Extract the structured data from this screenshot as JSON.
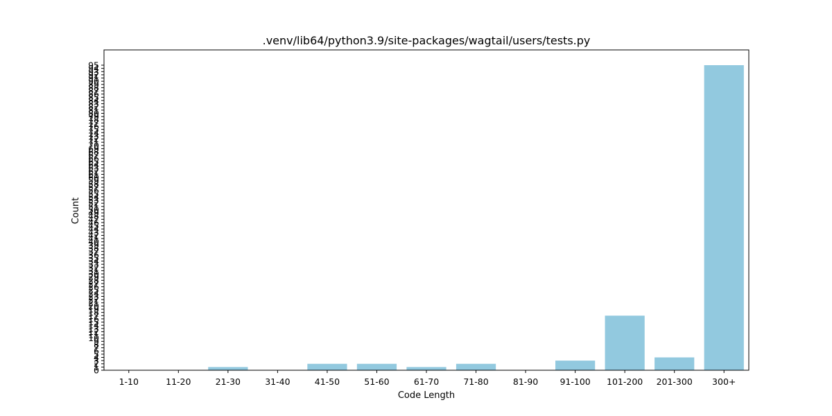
{
  "chart_data": {
    "type": "bar",
    "title": ".venv/lib64/python3.9/site-packages/wagtail/users/tests.py",
    "xlabel": "Code Length",
    "ylabel": "Count",
    "categories": [
      "1-10",
      "11-20",
      "21-30",
      "31-40",
      "41-50",
      "51-60",
      "61-70",
      "71-80",
      "81-90",
      "91-100",
      "101-200",
      "201-300",
      "300+"
    ],
    "values": [
      0,
      0,
      1,
      0,
      2,
      2,
      1,
      2,
      0,
      3,
      17,
      4,
      95
    ],
    "ylim": [
      0,
      99.75
    ],
    "yticks": [
      0,
      1,
      2,
      3,
      4,
      5,
      6,
      7,
      8,
      9,
      10,
      11,
      12,
      13,
      14,
      15,
      16,
      17,
      18,
      19,
      20,
      21,
      22,
      23,
      24,
      25,
      26,
      27,
      28,
      29,
      30,
      31,
      32,
      33,
      34,
      35,
      36,
      37,
      38,
      39,
      40,
      41,
      42,
      43,
      44,
      45,
      46,
      47,
      48,
      49,
      50,
      51,
      52,
      53,
      54,
      55,
      56,
      57,
      58,
      59,
      60,
      61,
      62,
      63,
      64,
      65,
      66,
      67,
      68,
      69,
      70,
      71,
      72,
      73,
      74,
      75,
      76,
      77,
      78,
      79,
      80,
      81,
      82,
      83,
      84,
      85,
      86,
      87,
      88,
      89,
      90,
      91,
      92,
      93,
      94,
      95
    ],
    "bar_color": "#92c9df",
    "grid": false,
    "legend": "none"
  }
}
